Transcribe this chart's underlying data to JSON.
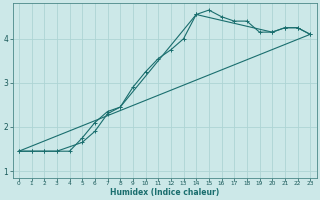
{
  "xlabel": "Humidex (Indice chaleur)",
  "bg_color": "#cce8e8",
  "grid_color": "#aed4d4",
  "line_color": "#1a6e6e",
  "xlim": [
    -0.5,
    23.5
  ],
  "ylim": [
    0.85,
    4.8
  ],
  "x_ticks": [
    0,
    1,
    2,
    3,
    4,
    5,
    6,
    7,
    8,
    9,
    10,
    11,
    12,
    13,
    14,
    15,
    16,
    17,
    18,
    19,
    20,
    21,
    22,
    23
  ],
  "y_ticks": [
    1,
    2,
    3,
    4
  ],
  "series1_x": [
    0,
    1,
    2,
    3,
    4,
    5,
    6,
    7,
    8,
    9,
    10,
    11,
    12,
    13,
    14,
    15,
    16,
    17,
    18,
    19,
    20,
    21,
    22,
    23
  ],
  "series1_y": [
    1.45,
    1.45,
    1.45,
    1.45,
    1.45,
    1.75,
    2.1,
    2.35,
    2.45,
    2.9,
    3.25,
    3.55,
    3.75,
    4.0,
    4.55,
    4.65,
    4.5,
    4.4,
    4.4,
    4.15,
    4.15,
    4.25,
    4.25,
    4.1
  ],
  "series2_x": [
    0,
    1,
    2,
    3,
    5,
    6,
    7,
    8,
    14,
    20,
    21,
    22,
    23
  ],
  "series2_y": [
    1.45,
    1.45,
    1.45,
    1.45,
    1.65,
    1.9,
    2.3,
    2.45,
    4.55,
    4.15,
    4.25,
    4.25,
    4.1
  ],
  "series3_x": [
    0,
    23
  ],
  "series3_y": [
    1.45,
    4.1
  ]
}
